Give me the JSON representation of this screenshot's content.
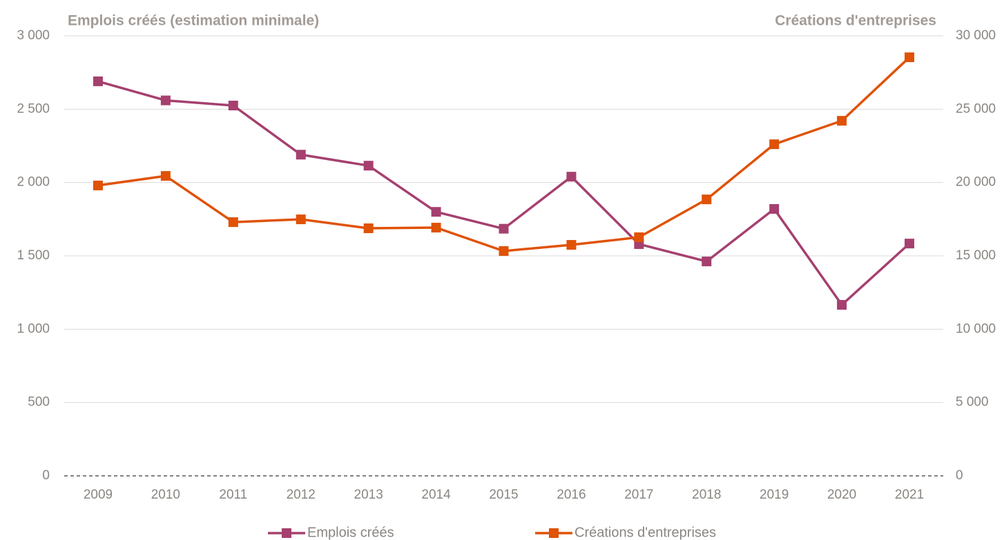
{
  "chart_data": {
    "type": "line",
    "y_label": "Emplois créés (estimation minimale)",
    "y2_label": "Créations d'entreprises",
    "categories": [
      "2009",
      "2010",
      "2011",
      "2012",
      "2013",
      "2014",
      "2015",
      "2016",
      "2017",
      "2018",
      "2019",
      "2020",
      "2021"
    ],
    "series": [
      {
        "name": "Emplois créés",
        "color": "#a5406f",
        "values": [
          2690,
          2560,
          2525,
          2190,
          2115,
          1800,
          1685,
          2040,
          1580,
          1462,
          1820,
          1166,
          1584
        ]
      },
      {
        "name": "Créations d'entreprises",
        "color": "#e05206",
        "axis": "y2",
        "values": [
          19800,
          20450,
          17300,
          17490,
          16880,
          16925,
          15330,
          15750,
          16270,
          18850,
          22610,
          24210,
          28540
        ]
      }
    ],
    "ylim": [
      0,
      3000
    ],
    "yticks": [
      0,
      500,
      {
        "value": 1000,
        "label": "1 000"
      },
      {
        "value": 1500,
        "label": "1 500"
      },
      {
        "value": 2000,
        "label": "2 000"
      },
      {
        "value": 2500,
        "label": "2 500"
      },
      {
        "value": 3000,
        "label": "3 000"
      }
    ],
    "y2lim": [
      0,
      30000
    ],
    "y2ticks": [
      0,
      {
        "value": 5000,
        "label": "5 000"
      },
      {
        "value": 10000,
        "label": "10 000"
      },
      {
        "value": 15000,
        "label": "15 000"
      },
      {
        "value": 20000,
        "label": "20 000"
      },
      {
        "value": 25000,
        "label": "25 000"
      },
      {
        "value": 30000,
        "label": "30 000"
      }
    ],
    "grid": true,
    "legend": "bottom"
  }
}
